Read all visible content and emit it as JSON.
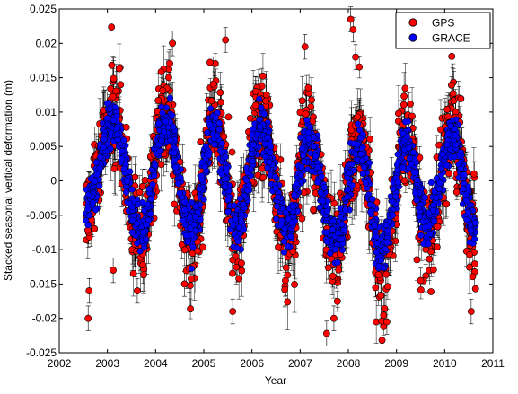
{
  "chart_data": {
    "type": "scatter",
    "xlabel": "Year",
    "ylabel": "Stacked seasonal vertical deformation (m)",
    "xlim": [
      2002,
      2011
    ],
    "ylim": [
      -0.025,
      0.025
    ],
    "x_ticks": [
      2002,
      2003,
      2004,
      2005,
      2006,
      2007,
      2008,
      2009,
      2010,
      2011
    ],
    "y_ticks": [
      -0.025,
      -0.02,
      -0.015,
      -0.01,
      -0.005,
      0,
      0.005,
      0.01,
      0.015,
      0.02,
      0.025
    ],
    "x_tick_labels": [
      "2002",
      "2003",
      "2004",
      "2005",
      "2006",
      "2007",
      "2008",
      "2009",
      "2010",
      "2011"
    ],
    "y_tick_labels": [
      "-0.025",
      "-0.02",
      "-0.015",
      "-0.01",
      "-0.005",
      "0",
      "0.005",
      "0.01",
      "0.015",
      "0.02",
      "0.025"
    ],
    "grid": false,
    "legend_position": "top-right",
    "data_range": [
      2002.55,
      2010.65
    ],
    "seasonal_model": {
      "x": [
        2002.55,
        2003.1,
        2003.7,
        2004.2,
        2004.75,
        2005.2,
        2005.7,
        2006.15,
        2006.75,
        2007.15,
        2007.75,
        2008.2,
        2008.7,
        2009.2,
        2009.65,
        2010.15,
        2010.65
      ],
      "y": [
        -0.004,
        0.009,
        -0.008,
        0.009,
        -0.008,
        0.008,
        -0.007,
        0.008,
        -0.007,
        0.006,
        -0.009,
        0.005,
        -0.011,
        0.006,
        -0.007,
        0.007,
        -0.008
      ]
    },
    "series": [
      {
        "name": "GPS",
        "color": "#ff0000",
        "marker": "circle",
        "error_bars": true,
        "amplitude_factor": 1.15,
        "scatter_sd": 0.0035,
        "outliers": {
          "x": [
            2002.6,
            2002.62,
            2003.12,
            2003.62,
            2004.35,
            2004.6,
            2005.45,
            2005.6,
            2007.1,
            2007.55,
            2007.7,
            2008.05,
            2008.1,
            2008.15,
            2008.7,
            2008.8,
            2009.5,
            2010.55
          ],
          "y": [
            -0.02,
            -0.016,
            -0.013,
            -0.016,
            0.02,
            -0.015,
            0.0205,
            -0.019,
            0.0195,
            -0.0222,
            -0.02,
            0.0235,
            0.022,
            0.018,
            -0.0232,
            -0.0205,
            -0.0145,
            -0.019
          ]
        }
      },
      {
        "name": "GRACE",
        "color": "#0000ff",
        "marker": "circle",
        "error_bars": false,
        "amplitude_factor": 0.95,
        "scatter_sd": 0.0017
      }
    ]
  }
}
